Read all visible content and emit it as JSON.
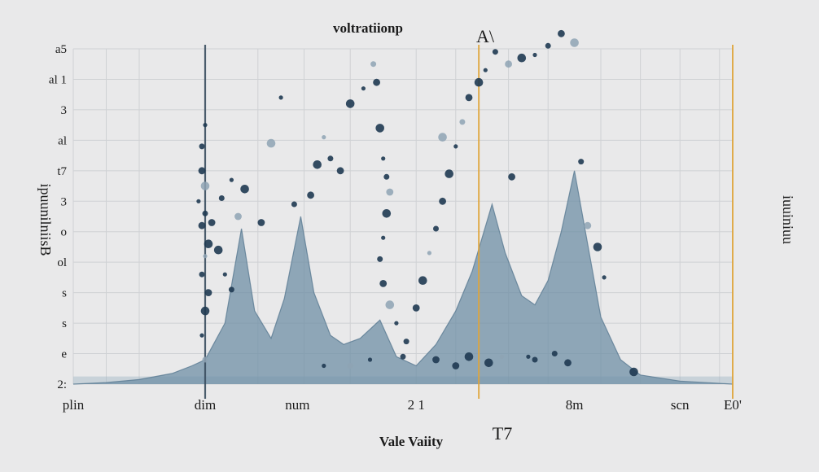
{
  "chart_data": {
    "type": "area",
    "title": "voltratiionp",
    "corner_label": "A\\",
    "xlabel": "Vale Vaiity",
    "ylabel": "ipuunilniisB",
    "right_label": "iuuiniuu",
    "below_tick_label": "T7",
    "x_ticks": [
      {
        "x": 0,
        "label": "plin"
      },
      {
        "x": 20,
        "label": "dim"
      },
      {
        "x": 34,
        "label": "num"
      },
      {
        "x": 52,
        "label": "2 1"
      },
      {
        "x": 76,
        "label": "8m"
      },
      {
        "x": 92,
        "label": "scn"
      },
      {
        "x": 100,
        "label": "E0'"
      }
    ],
    "y_ticks": [
      {
        "y": 0,
        "label": "2:"
      },
      {
        "y": 1,
        "label": "e"
      },
      {
        "y": 2,
        "label": "s"
      },
      {
        "y": 3,
        "label": "s"
      },
      {
        "y": 4,
        "label": "ol"
      },
      {
        "y": 5,
        "label": "o"
      },
      {
        "y": 6,
        "label": "3"
      },
      {
        "y": 7,
        "label": "t7"
      },
      {
        "y": 8,
        "label": "al"
      },
      {
        "y": 9,
        "label": "3"
      },
      {
        "y": 10,
        "label": "al 1"
      },
      {
        "y": 11,
        "label": "a5"
      }
    ],
    "xlim": [
      0,
      100
    ],
    "ylim": [
      0,
      11
    ],
    "grid": true,
    "colors": {
      "area_fill": "#6f8fa6",
      "marker": "#1f3a52",
      "marker_light": "#8ea3b4",
      "vline_dark": "#3b4f60",
      "vline_orange": "#e0a53a",
      "grid": "#cfd1d4",
      "baseline_band": "#9fb5c6"
    },
    "series": [
      {
        "points": [
          [
            0,
            0
          ],
          [
            5,
            0.05
          ],
          [
            10,
            0.15
          ],
          [
            15,
            0.35
          ],
          [
            18,
            0.6
          ],
          [
            20,
            0.8
          ],
          [
            23,
            2.0
          ],
          [
            25.5,
            5.1
          ],
          [
            27.5,
            2.4
          ],
          [
            30,
            1.5
          ],
          [
            32,
            2.8
          ],
          [
            34.5,
            5.5
          ],
          [
            36.5,
            3.0
          ],
          [
            39,
            1.6
          ],
          [
            41,
            1.3
          ],
          [
            43.5,
            1.5
          ],
          [
            46.5,
            2.1
          ],
          [
            49,
            0.9
          ],
          [
            52,
            0.6
          ],
          [
            55,
            1.3
          ],
          [
            58,
            2.4
          ],
          [
            60.5,
            3.7
          ],
          [
            62,
            4.8
          ],
          [
            63.5,
            5.9
          ],
          [
            65.5,
            4.3
          ],
          [
            68,
            2.9
          ],
          [
            70,
            2.6
          ],
          [
            72,
            3.4
          ],
          [
            74,
            5.0
          ],
          [
            76,
            7.0
          ],
          [
            78,
            4.6
          ],
          [
            80,
            2.2
          ],
          [
            83,
            0.8
          ],
          [
            86,
            0.3
          ],
          [
            92,
            0.1
          ],
          [
            100,
            0
          ]
        ]
      }
    ],
    "scatter_series": [
      {
        "points": [
          [
            20,
            8.5
          ],
          [
            19.5,
            7.8
          ],
          [
            19.5,
            7.0
          ],
          [
            20,
            6.5
          ],
          [
            19,
            6.0
          ],
          [
            20,
            5.6
          ],
          [
            19.5,
            5.2
          ],
          [
            20.5,
            4.6
          ],
          [
            20,
            4.2
          ],
          [
            19.5,
            3.6
          ],
          [
            20.5,
            3.0
          ],
          [
            20,
            2.4
          ],
          [
            19.5,
            1.6
          ],
          [
            20,
            0.8
          ],
          [
            21,
            5.3
          ],
          [
            22,
            4.4
          ],
          [
            23,
            3.6
          ],
          [
            24,
            3.1
          ],
          [
            25,
            5.5
          ],
          [
            26,
            6.4
          ],
          [
            24,
            6.7
          ],
          [
            22.5,
            6.1
          ],
          [
            28.5,
            5.3
          ],
          [
            30,
            7.9
          ],
          [
            31.5,
            9.4
          ],
          [
            33.5,
            5.9
          ],
          [
            36,
            6.2
          ],
          [
            37,
            7.2
          ],
          [
            38,
            8.1
          ],
          [
            39,
            7.4
          ],
          [
            40.5,
            7.0
          ],
          [
            42,
            9.2
          ],
          [
            44,
            9.7
          ],
          [
            45.5,
            10.5
          ],
          [
            46,
            9.9
          ],
          [
            46.5,
            8.4
          ],
          [
            47,
            7.4
          ],
          [
            47.5,
            6.8
          ],
          [
            48,
            6.3
          ],
          [
            47.5,
            5.6
          ],
          [
            47,
            4.8
          ],
          [
            46.5,
            4.1
          ],
          [
            47,
            3.3
          ],
          [
            48,
            2.6
          ],
          [
            49,
            2.0
          ],
          [
            50.5,
            1.4
          ],
          [
            52,
            2.5
          ],
          [
            53,
            3.4
          ],
          [
            54,
            4.3
          ],
          [
            55,
            5.1
          ],
          [
            56,
            6.0
          ],
          [
            57,
            6.9
          ],
          [
            58,
            7.8
          ],
          [
            59,
            8.6
          ],
          [
            60,
            9.4
          ],
          [
            61.5,
            9.9
          ],
          [
            62.5,
            10.3
          ],
          [
            64,
            10.9
          ],
          [
            66,
            10.5
          ],
          [
            68,
            10.7
          ],
          [
            70,
            10.8
          ],
          [
            72,
            11.1
          ],
          [
            74,
            11.5
          ],
          [
            76,
            11.2
          ],
          [
            45,
            0.8
          ],
          [
            50,
            0.9
          ],
          [
            55,
            0.8
          ],
          [
            60,
            0.9
          ],
          [
            65,
            0.9
          ],
          [
            70,
            0.8
          ],
          [
            75,
            0.7
          ],
          [
            85,
            0.4
          ],
          [
            38,
            0.6
          ],
          [
            42,
            0.6
          ],
          [
            58,
            0.6
          ],
          [
            63,
            0.7
          ],
          [
            69,
            0.9
          ],
          [
            73,
            1.0
          ],
          [
            78,
            5.2
          ],
          [
            79.5,
            4.5
          ],
          [
            80.5,
            3.5
          ],
          [
            77,
            7.3
          ],
          [
            66.5,
            6.8
          ],
          [
            56,
            8.1
          ]
        ]
      }
    ],
    "vlines": [
      {
        "x": 20,
        "style": "dark"
      },
      {
        "x": 61.5,
        "style": "orange"
      },
      {
        "x": 100,
        "style": "orange"
      }
    ]
  }
}
